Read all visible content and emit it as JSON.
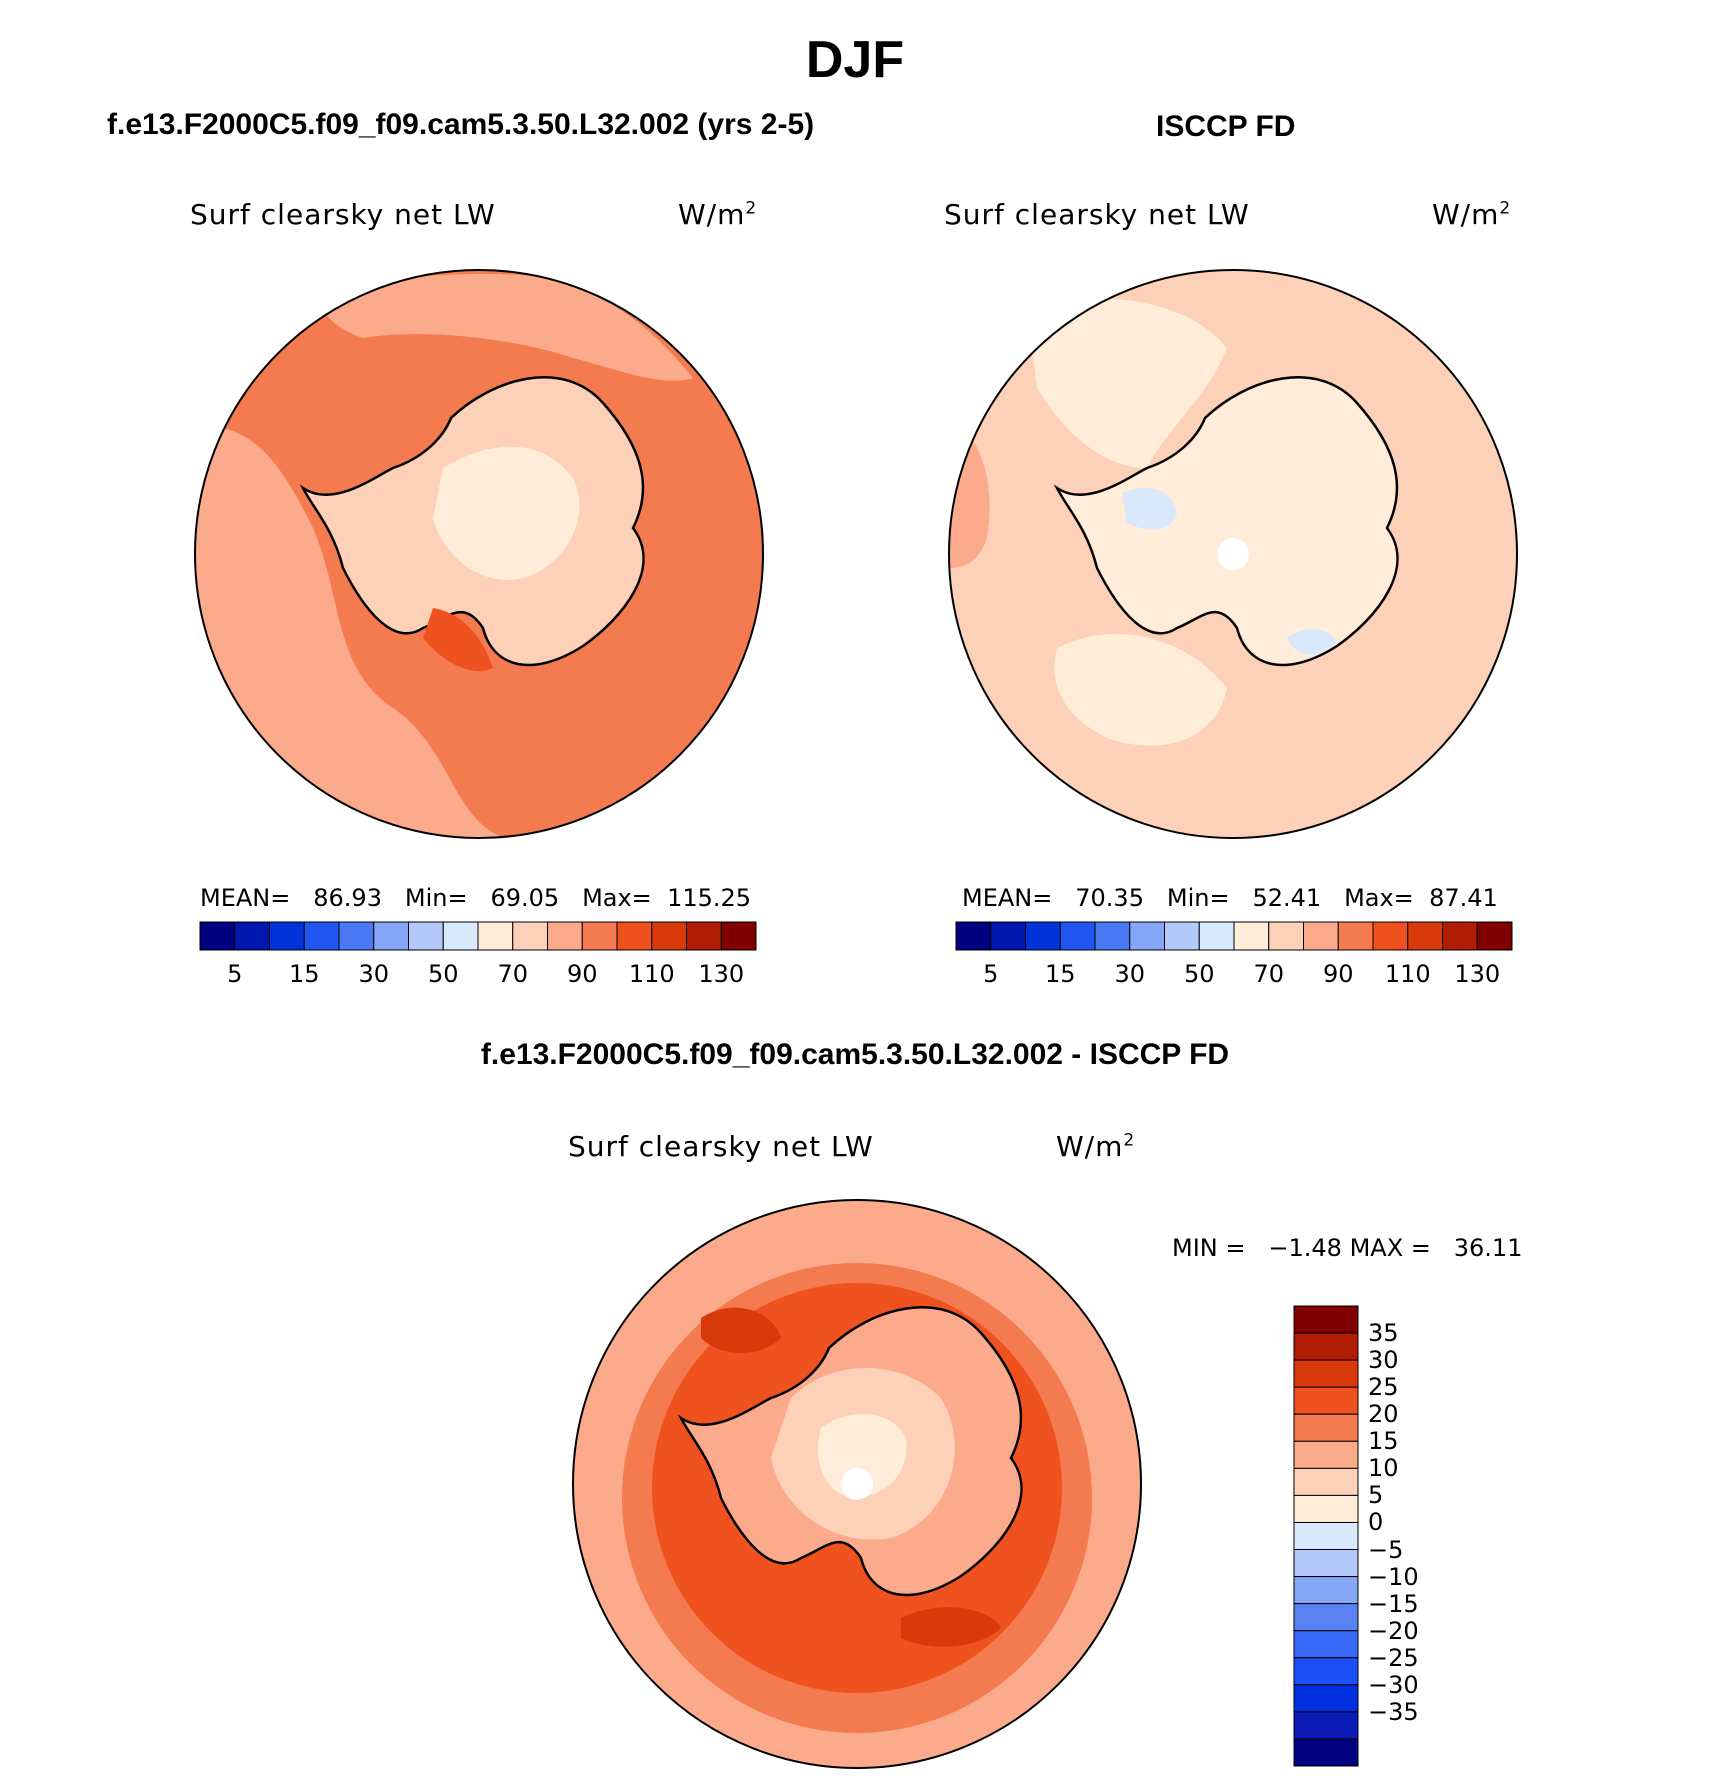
{
  "title": "DJF",
  "colors": {
    "abs_levels": [
      "#00007f",
      "#0018b0",
      "#0033d9",
      "#1f56f0",
      "#4a78f5",
      "#86a6f8",
      "#b3c9fa",
      "#d9e8fb",
      "#ffecd9",
      "#fdd0b8",
      "#fbab8c",
      "#f47a4f",
      "#f0521f",
      "#d93a0b",
      "#b11d04",
      "#7f0000"
    ],
    "diff_levels": [
      "#000080",
      "#0a1ab5",
      "#0030e0",
      "#1a50f5",
      "#3868f5",
      "#5a82f5",
      "#86a6f8",
      "#b3c9fa",
      "#d9e8fb",
      "#ffecd9",
      "#fdd0b8",
      "#fbab8c",
      "#f47a4f",
      "#f0521f",
      "#d93a0b",
      "#b01c04",
      "#800000"
    ]
  },
  "panels": [
    {
      "case_title": "f.e13.F2000C5.f09_f09.cam5.3.50.L32.002 (yrs 2-5)",
      "var_label": "Surf clearsky net LW",
      "units": "W/m",
      "units_sup": "2",
      "stats": {
        "mean_label": "MEAN=",
        "mean": "86.93",
        "min_label": "Min=",
        "min": "69.05",
        "max_label": "Max=",
        "max": "115.25"
      },
      "colorbar_ticks": [
        "5",
        "15",
        "30",
        "50",
        "70",
        "90",
        "110",
        "130"
      ],
      "map": {
        "ocean_color": "#f47a4f",
        "continent_color": "#fdd0b8",
        "zones": [
          {
            "color": "#fbab8c",
            "role": "sector-atlantic"
          },
          {
            "color": "#fbab8c",
            "role": "sector-pacific"
          },
          {
            "color": "#ffecd9",
            "role": "plateau-light"
          },
          {
            "color": "#f0521f",
            "role": "ross-sea-warm"
          }
        ]
      }
    },
    {
      "case_title": "ISCCP FD",
      "var_label": "Surf clearsky net LW",
      "units": "W/m",
      "units_sup": "2",
      "stats": {
        "mean_label": "MEAN=",
        "mean": "70.35",
        "min_label": "Min=",
        "min": "52.41",
        "max_label": "Max=",
        "max": "87.41"
      },
      "colorbar_ticks": [
        "5",
        "15",
        "30",
        "50",
        "70",
        "90",
        "110",
        "130"
      ],
      "map": {
        "ocean_color": "#fdd0b8",
        "continent_color": "#ffecd9",
        "zones": [
          {
            "color": "#ffecd9",
            "role": "outer-light"
          },
          {
            "color": "#d9e8fb",
            "role": "plateau-cold"
          },
          {
            "color": "#fbab8c",
            "role": "edge-warm"
          }
        ]
      }
    }
  ],
  "diff_panel": {
    "case_title": "f.e13.F2000C5.f09_f09.cam5.3.50.L32.002 - ISCCP FD",
    "var_label": "Surf clearsky net LW",
    "units": "W/m",
    "units_sup": "2",
    "stats": {
      "min_label": "MIN =",
      "min": "−1.48",
      "max_label": "MAX =",
      "max": "36.11"
    },
    "colorbar_ticks": [
      "35",
      "30",
      "25",
      "20",
      "15",
      "10",
      "5",
      "0",
      "−5",
      "−10",
      "−15",
      "−20",
      "−25",
      "−30",
      "−35"
    ],
    "map": {
      "ocean_color": "#f0521f",
      "continent_color": "#fbab8c",
      "zones": [
        {
          "color": "#f47a4f",
          "role": "mid-ring"
        },
        {
          "color": "#fbab8c",
          "role": "outer-ring"
        },
        {
          "color": "#fdd0b8",
          "role": "plateau"
        },
        {
          "color": "#ffecd9",
          "role": "plateau-center"
        },
        {
          "color": "#d93a0b",
          "role": "hotspots"
        }
      ]
    }
  }
}
